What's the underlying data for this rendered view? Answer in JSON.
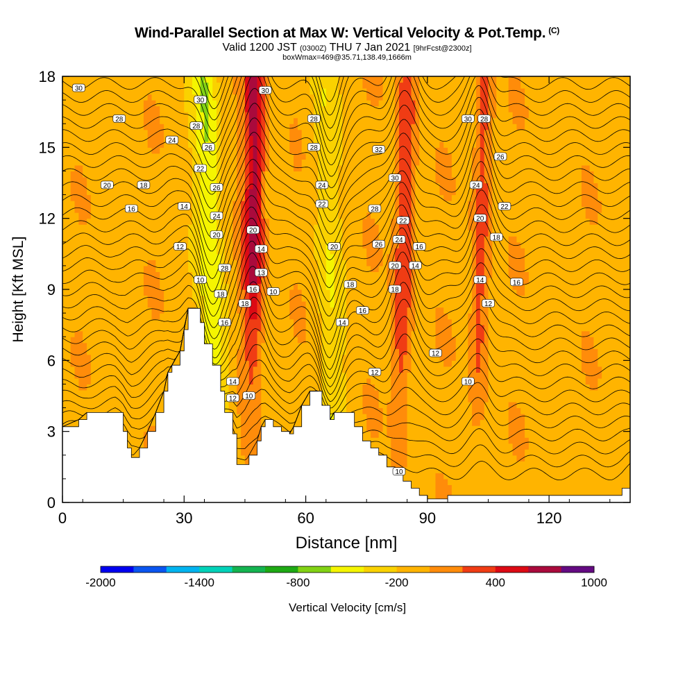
{
  "header": {
    "title": "Wind-Parallel Section at Max W: Vertical Velocity & Pot.Temp.",
    "title_mark": "(C)",
    "valid_prefix": "Valid 1200 JST",
    "valid_utc": "(0300Z)",
    "valid_date": "THU 7 Jan 2021",
    "forecast": "[9hrFcst@2300z]",
    "box_info": "boxWmax=469@35.71,138.49,1666m"
  },
  "chart_data": {
    "type": "heatmap",
    "title": "Wind-Parallel Section at Max W: Vertical Velocity & Pot.Temp.",
    "xlabel": "Distance [nm]",
    "ylabel": "Height [Kft MSL]",
    "xlim": [
      0,
      140
    ],
    "ylim": [
      0,
      18
    ],
    "x_ticks": [
      0,
      30,
      60,
      90,
      120
    ],
    "y_ticks": [
      0,
      3,
      6,
      9,
      12,
      15,
      18
    ],
    "colorbar": {
      "label": "Vertical Velocity [cm/s]",
      "tick_labels": [
        "-2000",
        "-1400",
        "-800",
        "-200",
        "400",
        "1000"
      ],
      "bounds": [
        -2000,
        -1800,
        -1600,
        -1400,
        -1200,
        -1000,
        -800,
        -600,
        -400,
        -200,
        0,
        200,
        400,
        600,
        800,
        1000
      ],
      "colors": [
        "#0000f0",
        "#0a55f0",
        "#00b4f0",
        "#00d2b9",
        "#14b450",
        "#1eaa14",
        "#82d214",
        "#f5f500",
        "#fad200",
        "#ffb400",
        "#ff8c0a",
        "#f03c14",
        "#dc0a14",
        "#aa0a3c",
        "#640a82"
      ]
    },
    "fill_bands": [
      {
        "center_x": 47,
        "kind": "updraft-core",
        "peak": 800
      },
      {
        "center_x": 84,
        "kind": "updraft",
        "peak": 500
      },
      {
        "center_x": 103,
        "kind": "updraft",
        "peak": 400
      },
      {
        "center_x": 37,
        "kind": "downdraft",
        "peak": -500
      },
      {
        "center_x": 66,
        "kind": "downdraft",
        "peak": -250
      }
    ],
    "terrain": [
      {
        "x": 0,
        "h": 3.2
      },
      {
        "x": 4,
        "h": 3.5
      },
      {
        "x": 6,
        "h": 3.8
      },
      {
        "x": 13,
        "h": 3.8
      },
      {
        "x": 15,
        "h": 3.0
      },
      {
        "x": 16,
        "h": 2.3
      },
      {
        "x": 17,
        "h": 1.9
      },
      {
        "x": 19,
        "h": 2.3
      },
      {
        "x": 21,
        "h": 3.0
      },
      {
        "x": 23,
        "h": 3.8
      },
      {
        "x": 25,
        "h": 4.7
      },
      {
        "x": 26,
        "h": 5.5
      },
      {
        "x": 27,
        "h": 5.8
      },
      {
        "x": 29,
        "h": 6.4
      },
      {
        "x": 30,
        "h": 7.3
      },
      {
        "x": 31,
        "h": 8.2
      },
      {
        "x": 33,
        "h": 8.2
      },
      {
        "x": 34,
        "h": 7.6
      },
      {
        "x": 35,
        "h": 6.7
      },
      {
        "x": 37,
        "h": 5.8
      },
      {
        "x": 39,
        "h": 4.7
      },
      {
        "x": 40,
        "h": 3.8
      },
      {
        "x": 42,
        "h": 2.9
      },
      {
        "x": 43,
        "h": 1.6
      },
      {
        "x": 45,
        "h": 1.6
      },
      {
        "x": 46,
        "h": 2.0
      },
      {
        "x": 48,
        "h": 2.6
      },
      {
        "x": 49,
        "h": 3.2
      },
      {
        "x": 50,
        "h": 3.5
      },
      {
        "x": 52,
        "h": 3.2
      },
      {
        "x": 54,
        "h": 3.0
      },
      {
        "x": 56,
        "h": 2.9
      },
      {
        "x": 57,
        "h": 3.2
      },
      {
        "x": 59,
        "h": 4.1
      },
      {
        "x": 61,
        "h": 4.7
      },
      {
        "x": 63,
        "h": 4.7
      },
      {
        "x": 64,
        "h": 4.1
      },
      {
        "x": 66,
        "h": 3.5
      },
      {
        "x": 67,
        "h": 3.8
      },
      {
        "x": 70,
        "h": 3.8
      },
      {
        "x": 72,
        "h": 3.2
      },
      {
        "x": 74,
        "h": 2.6
      },
      {
        "x": 76,
        "h": 2.3
      },
      {
        "x": 78,
        "h": 2.0
      },
      {
        "x": 80,
        "h": 1.5
      },
      {
        "x": 82,
        "h": 1.2
      },
      {
        "x": 84,
        "h": 0.9
      },
      {
        "x": 86,
        "h": 0.6
      },
      {
        "x": 88,
        "h": 0.3
      },
      {
        "x": 90,
        "h": 0.15
      },
      {
        "x": 95,
        "h": 0.3
      },
      {
        "x": 105,
        "h": 0.3
      },
      {
        "x": 115,
        "h": 0.3
      },
      {
        "x": 125,
        "h": 0.3
      },
      {
        "x": 135,
        "h": 0.3
      },
      {
        "x": 138,
        "h": 0.6
      },
      {
        "x": 140,
        "h": 1.0
      }
    ],
    "theta_contour_labels": [
      {
        "x": 4,
        "y": 17.5,
        "label": "30"
      },
      {
        "x": 14,
        "y": 16.2,
        "label": "28"
      },
      {
        "x": 27,
        "y": 15.3,
        "label": "24"
      },
      {
        "x": 11,
        "y": 13.4,
        "label": "20"
      },
      {
        "x": 20,
        "y": 13.4,
        "label": "18"
      },
      {
        "x": 17,
        "y": 12.4,
        "label": "16"
      },
      {
        "x": 30,
        "y": 12.5,
        "label": "14"
      },
      {
        "x": 29,
        "y": 10.8,
        "label": "12"
      },
      {
        "x": 34,
        "y": 9.4,
        "label": "10"
      },
      {
        "x": 34,
        "y": 17.0,
        "label": "30"
      },
      {
        "x": 33,
        "y": 15.9,
        "label": "28"
      },
      {
        "x": 36,
        "y": 15.0,
        "label": "26"
      },
      {
        "x": 34,
        "y": 14.1,
        "label": "22"
      },
      {
        "x": 38,
        "y": 13.3,
        "label": "26"
      },
      {
        "x": 38,
        "y": 12.1,
        "label": "24"
      },
      {
        "x": 38,
        "y": 11.3,
        "label": "20"
      },
      {
        "x": 40,
        "y": 9.9,
        "label": "28"
      },
      {
        "x": 39,
        "y": 8.8,
        "label": "18"
      },
      {
        "x": 40,
        "y": 7.6,
        "label": "16"
      },
      {
        "x": 42,
        "y": 5.1,
        "label": "14"
      },
      {
        "x": 42,
        "y": 4.4,
        "label": "12"
      },
      {
        "x": 50,
        "y": 17.4,
        "label": "30"
      },
      {
        "x": 47,
        "y": 11.5,
        "label": "20"
      },
      {
        "x": 49,
        "y": 10.7,
        "label": "14"
      },
      {
        "x": 49,
        "y": 9.7,
        "label": "13"
      },
      {
        "x": 47,
        "y": 9.0,
        "label": "16"
      },
      {
        "x": 45,
        "y": 8.4,
        "label": "18"
      },
      {
        "x": 52,
        "y": 8.9,
        "label": "10"
      },
      {
        "x": 46,
        "y": 4.5,
        "label": "10"
      },
      {
        "x": 62,
        "y": 16.2,
        "label": "28"
      },
      {
        "x": 62,
        "y": 15.0,
        "label": "28"
      },
      {
        "x": 64,
        "y": 13.4,
        "label": "24"
      },
      {
        "x": 64,
        "y": 12.6,
        "label": "22"
      },
      {
        "x": 67,
        "y": 10.8,
        "label": "20"
      },
      {
        "x": 71,
        "y": 9.2,
        "label": "18"
      },
      {
        "x": 69,
        "y": 7.6,
        "label": "14"
      },
      {
        "x": 74,
        "y": 8.1,
        "label": "16"
      },
      {
        "x": 77,
        "y": 5.5,
        "label": "12"
      },
      {
        "x": 78,
        "y": 14.9,
        "label": "32"
      },
      {
        "x": 82,
        "y": 13.7,
        "label": "30"
      },
      {
        "x": 77,
        "y": 12.4,
        "label": "28"
      },
      {
        "x": 78,
        "y": 10.9,
        "label": "26"
      },
      {
        "x": 83,
        "y": 11.1,
        "label": "24"
      },
      {
        "x": 84,
        "y": 11.9,
        "label": "22"
      },
      {
        "x": 82,
        "y": 10.0,
        "label": "20"
      },
      {
        "x": 82,
        "y": 9.0,
        "label": "18"
      },
      {
        "x": 87,
        "y": 10.0,
        "label": "14"
      },
      {
        "x": 88,
        "y": 10.8,
        "label": "16"
      },
      {
        "x": 83,
        "y": 1.3,
        "label": "10"
      },
      {
        "x": 100,
        "y": 16.2,
        "label": "30"
      },
      {
        "x": 104,
        "y": 16.2,
        "label": "28"
      },
      {
        "x": 108,
        "y": 14.6,
        "label": "26"
      },
      {
        "x": 102,
        "y": 13.4,
        "label": "24"
      },
      {
        "x": 109,
        "y": 12.5,
        "label": "22"
      },
      {
        "x": 103,
        "y": 12.0,
        "label": "20"
      },
      {
        "x": 107,
        "y": 11.2,
        "label": "18"
      },
      {
        "x": 103,
        "y": 9.4,
        "label": "14"
      },
      {
        "x": 105,
        "y": 8.4,
        "label": "12"
      },
      {
        "x": 112,
        "y": 9.3,
        "label": "16"
      },
      {
        "x": 92,
        "y": 6.3,
        "label": "12"
      },
      {
        "x": 100,
        "y": 5.1,
        "label": "10"
      }
    ]
  }
}
